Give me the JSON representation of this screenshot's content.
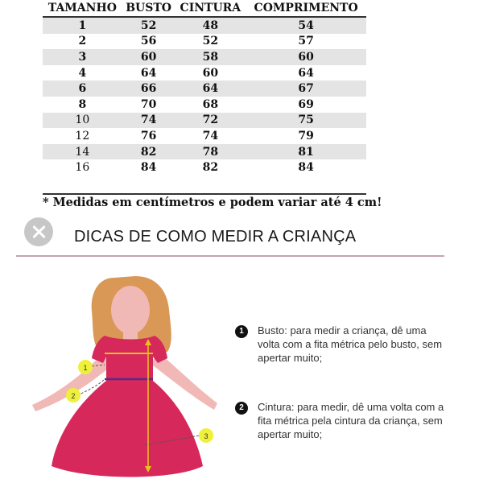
{
  "table": {
    "headers": [
      "TAMANHO",
      "BUSTO",
      "CINTURA",
      "COMPRIMENTO"
    ],
    "rows": [
      [
        "1",
        "52",
        "48",
        "54"
      ],
      [
        "2",
        "56",
        "52",
        "57"
      ],
      [
        "3",
        "60",
        "58",
        "60"
      ],
      [
        "4",
        "64",
        "60",
        "64"
      ],
      [
        "6",
        "66",
        "64",
        "67"
      ],
      [
        "8",
        "70",
        "68",
        "69"
      ],
      [
        "10",
        "74",
        "72",
        "75"
      ],
      [
        "12",
        "76",
        "74",
        "79"
      ],
      [
        "14",
        "82",
        "78",
        "81"
      ],
      [
        "16",
        "84",
        "82",
        "84"
      ]
    ]
  },
  "footnote": "* Medidas em centímetros e podem variar até 4 cm!",
  "tips": {
    "title": "DICAS DE COMO MEDIR A CRIANÇA",
    "items": [
      {
        "number": "1",
        "text": "Busto: para medir a criança, dê uma volta com a fita métrica pelo busto, sem apertar muito;"
      },
      {
        "number": "2",
        "text": "Cintura: para medir, dê uma volta com a fita métrica pela cintura da criança, sem apertar muito;"
      }
    ]
  },
  "markers": [
    "1",
    "2",
    "3"
  ],
  "colors": {
    "dress": "#d6285a",
    "skin": "#f1b9b6",
    "hair": "#d99855",
    "busto_line": "#e8c21a",
    "cintura_line": "#5a2a8a"
  },
  "icons": {
    "close": "close-icon"
  }
}
